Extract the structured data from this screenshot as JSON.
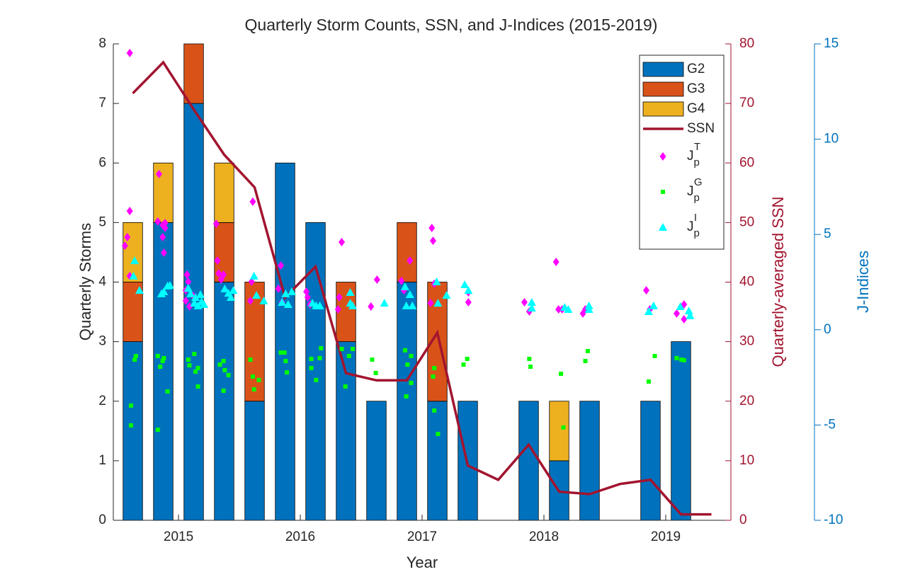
{
  "chart_data": {
    "type": "bar",
    "stacked": true,
    "title": "Quarterly Storm Counts, SSN, and J-Indices (2015-2019)",
    "xlabel": "Year",
    "ylabel": "Quarterly Storms",
    "y2label": "Quarterly-averaged SSN",
    "y3label": "J-Indices",
    "xlim": [
      2014.465,
      2019.535
    ],
    "xticks": [
      2015,
      2016,
      2017,
      2018,
      2019
    ],
    "ylim": [
      0,
      8
    ],
    "yticks": [
      0,
      1,
      2,
      3,
      4,
      5,
      6,
      7,
      8
    ],
    "y2lim": [
      0,
      80
    ],
    "y2ticks": [
      0,
      10,
      20,
      30,
      40,
      50,
      60,
      70,
      80
    ],
    "y2color": "#a2142f",
    "y3lim": [
      -10,
      15
    ],
    "y3ticks": [
      -10,
      -5,
      0,
      5,
      10,
      15
    ],
    "y3color": "#0072bd",
    "legend": "upper right",
    "x": [
      2014.625,
      2014.875,
      2015.125,
      2015.375,
      2015.625,
      2015.875,
      2016.125,
      2016.375,
      2016.625,
      2016.875,
      2017.125,
      2017.375,
      2017.625,
      2017.875,
      2018.125,
      2018.375,
      2018.625,
      2018.875,
      2019.125,
      2019.375
    ],
    "series": [
      {
        "name": "G2",
        "type": "bar",
        "color": "#0072bd",
        "values": [
          3,
          5,
          7,
          4,
          2,
          6,
          5,
          3,
          2,
          4,
          2,
          2,
          0,
          2,
          1,
          2,
          0,
          2,
          3,
          0
        ]
      },
      {
        "name": "G3",
        "type": "bar",
        "color": "#d95319",
        "values": [
          1,
          0,
          1,
          1,
          2,
          0,
          0,
          1,
          0,
          1,
          2,
          0,
          0,
          0,
          0,
          0,
          0,
          0,
          0,
          0
        ]
      },
      {
        "name": "G4",
        "type": "bar",
        "color": "#edb120",
        "values": [
          1,
          1,
          0,
          1,
          0,
          0,
          0,
          0,
          0,
          0,
          0,
          0,
          0,
          0,
          1,
          0,
          0,
          0,
          0,
          0
        ]
      },
      {
        "name": "SSN",
        "type": "line",
        "axis": "y2",
        "color": "#a2142f",
        "values": [
          71.7,
          76.9,
          69.0,
          61.4,
          55.9,
          37.4,
          42.6,
          24.7,
          23.5,
          23.5,
          31.5,
          9.2,
          6.8,
          12.7,
          4.8,
          4.4,
          6.1,
          6.8,
          1.0,
          1.0
        ]
      },
      {
        "name": "J",
        "subscript": "p",
        "superscript": "T",
        "type": "scatter",
        "marker": "diamond",
        "axis": "y3",
        "color": "#ff00ff",
        "x": [
          2014.6,
          2014.6,
          2014.58,
          2014.56,
          2014.6,
          2014.83,
          2014.84,
          2014.87,
          2014.87,
          2014.88,
          2014.89,
          2014.89,
          2015.07,
          2015.08,
          2015.06,
          2015.06,
          2015.09,
          2015.12,
          2015.31,
          2015.32,
          2015.33,
          2015.35,
          2015.37,
          2015.61,
          2015.59,
          2015.6,
          2015.84,
          2015.82,
          2015.85,
          2016.05,
          2016.06,
          2016.08,
          2016.34,
          2016.31,
          2016.32,
          2016.63,
          2016.58,
          2016.83,
          2016.85,
          2016.9,
          2017.08,
          2017.09,
          2017.07,
          2017.1,
          2017.38,
          2017.38,
          2017.84,
          2017.88,
          2018.1,
          2018.12,
          2018.15,
          2018.32,
          2018.34,
          2018.84,
          2018.87,
          2019.09,
          2019.15,
          2019.15
        ],
        "values": [
          14.52,
          6.23,
          4.86,
          4.41,
          2.82,
          5.68,
          8.17,
          5.49,
          4.86,
          4.04,
          5.6,
          5.34,
          2.89,
          2.52,
          2.07,
          1.52,
          1.22,
          1.78,
          5.56,
          3.63,
          2.96,
          2.63,
          2.89,
          6.72,
          1.52,
          2.52,
          3.37,
          2.15,
          1.44,
          2.0,
          1.7,
          1.33,
          4.6,
          1.07,
          1.7,
          2.63,
          1.22,
          2.56,
          2.07,
          3.63,
          5.34,
          4.67,
          1.4,
          2.41,
          1.96,
          1.44,
          1.44,
          0.96,
          3.56,
          1.07,
          1.07,
          0.85,
          1.07,
          2.07,
          1.07,
          0.85,
          1.33,
          0.55
        ]
      },
      {
        "name": "J",
        "subscript": "p",
        "superscript": "G",
        "type": "scatter",
        "marker": "square",
        "axis": "y3",
        "color": "#00ff00",
        "x": [
          2014.61,
          2014.61,
          2014.65,
          2014.64,
          2014.83,
          2014.83,
          2014.85,
          2014.87,
          2014.88,
          2014.91,
          2015.08,
          2015.09,
          2015.13,
          2015.14,
          2015.16,
          2015.16,
          2015.34,
          2015.37,
          2015.38,
          2015.37,
          2015.41,
          2015.59,
          2015.61,
          2015.62,
          2015.66,
          2015.84,
          2015.87,
          2015.88,
          2015.89,
          2016.09,
          2016.09,
          2016.13,
          2016.17,
          2016.16,
          2016.34,
          2016.4,
          2016.37,
          2016.43,
          2016.59,
          2016.62,
          2016.86,
          2016.88,
          2016.91,
          2016.91,
          2016.87,
          2017.1,
          2017.09,
          2017.1,
          2017.13,
          2017.34,
          2017.37,
          2017.88,
          2017.89,
          2018.16,
          2018.14,
          2018.34,
          2018.36,
          2018.86,
          2018.91,
          2019.09,
          2019.13,
          2019.15
        ],
        "values": [
          -3.98,
          -5.02,
          -1.38,
          -1.57,
          -1.38,
          -5.25,
          -1.94,
          -1.64,
          -1.49,
          -3.24,
          -1.57,
          -1.87,
          -1.27,
          -2.2,
          -2.01,
          -2.98,
          -1.83,
          -1.64,
          -2.12,
          -3.2,
          -2.38,
          -1.57,
          -2.46,
          -3.13,
          -2.64,
          -1.2,
          -1.2,
          -1.64,
          -2.24,
          -1.53,
          -2.01,
          -2.64,
          -0.97,
          -1.49,
          -1.01,
          -1.38,
          -2.98,
          -1.01,
          -1.57,
          -2.27,
          -1.08,
          -1.83,
          -1.38,
          -2.79,
          -3.5,
          -2.01,
          -2.46,
          -4.24,
          -5.47,
          -1.83,
          -1.53,
          -1.53,
          -1.94,
          -5.13,
          -2.31,
          -1.64,
          -1.12,
          -2.72,
          -1.38,
          -1.49,
          -1.57,
          -1.6
        ]
      },
      {
        "name": "J",
        "subscript": "p",
        "superscript": "I",
        "type": "scatter",
        "marker": "triangle",
        "axis": "y3",
        "color": "#00ffff",
        "x": [
          2014.64,
          2014.63,
          2014.68,
          2014.86,
          2014.88,
          2014.91,
          2014.93,
          2015.08,
          2015.1,
          2015.14,
          2015.18,
          2015.19,
          2015.21,
          2015.13,
          2015.16,
          2015.38,
          2015.41,
          2015.43,
          2015.45,
          2015.62,
          2015.64,
          2015.7,
          2015.85,
          2015.88,
          2015.9,
          2015.93,
          2016.1,
          2016.13,
          2016.16,
          2016.41,
          2016.41,
          2016.43,
          2016.69,
          2016.86,
          2016.9,
          2016.87,
          2016.92,
          2017.12,
          2017.13,
          2017.2,
          2017.35,
          2017.38,
          2017.9,
          2017.9,
          2018.17,
          2018.2,
          2018.37,
          2018.37,
          2018.86,
          2018.9,
          2019.12,
          2019.19,
          2019.2
        ],
        "values": [
          3.63,
          2.82,
          2.07,
          1.89,
          2.0,
          2.3,
          2.33,
          2.18,
          1.89,
          1.7,
          1.85,
          1.48,
          1.33,
          1.4,
          1.26,
          2.15,
          1.92,
          1.7,
          2.07,
          2.82,
          1.81,
          1.52,
          1.44,
          1.89,
          1.33,
          2.0,
          1.4,
          1.26,
          1.26,
          1.96,
          1.4,
          1.26,
          1.4,
          2.26,
          1.85,
          1.26,
          1.26,
          2.52,
          1.4,
          1.81,
          2.37,
          2.07,
          1.44,
          1.14,
          1.18,
          1.07,
          1.26,
          1.07,
          0.96,
          1.26,
          1.22,
          0.99,
          0.74
        ]
      }
    ]
  }
}
